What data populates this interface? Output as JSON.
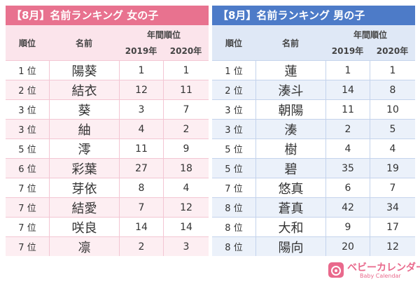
{
  "tables": [
    {
      "title": "【8月】名前ランキング 女の子",
      "header": {
        "rank": "順位",
        "name": "名前",
        "group": "年間順位",
        "y2019": "2019年",
        "y2020": "2020年"
      },
      "rows": [
        [
          "1 位",
          "陽葵",
          1,
          1
        ],
        [
          "2 位",
          "結衣",
          12,
          11
        ],
        [
          "3 位",
          "葵",
          3,
          7
        ],
        [
          "3 位",
          "紬",
          4,
          2
        ],
        [
          "5 位",
          "澪",
          11,
          9
        ],
        [
          "6 位",
          "彩葉",
          27,
          18
        ],
        [
          "7 位",
          "芽依",
          8,
          4
        ],
        [
          "7 位",
          "結愛",
          7,
          12
        ],
        [
          "7 位",
          "咲良",
          14,
          14
        ],
        [
          "7 位",
          "凛",
          2,
          3
        ]
      ]
    },
    {
      "title": "【8月】名前ランキング 男の子",
      "header": {
        "rank": "順位",
        "name": "名前",
        "group": "年間順位",
        "y2019": "2019年",
        "y2020": "2020年"
      },
      "rows": [
        [
          "1 位",
          "蓮",
          1,
          1
        ],
        [
          "2 位",
          "湊斗",
          14,
          8
        ],
        [
          "3 位",
          "朝陽",
          11,
          10
        ],
        [
          "3 位",
          "湊",
          2,
          5
        ],
        [
          "5 位",
          "樹",
          4,
          4
        ],
        [
          "5 位",
          "碧",
          35,
          19
        ],
        [
          "7 位",
          "悠真",
          6,
          7
        ],
        [
          "8 位",
          "蒼真",
          42,
          34
        ],
        [
          "8 位",
          "大和",
          9,
          17
        ],
        [
          "8 位",
          "陽向",
          20,
          12
        ]
      ]
    }
  ],
  "logo": {
    "name": "ベビーカレンダー",
    "subtitle": "Baby Calendar"
  }
}
